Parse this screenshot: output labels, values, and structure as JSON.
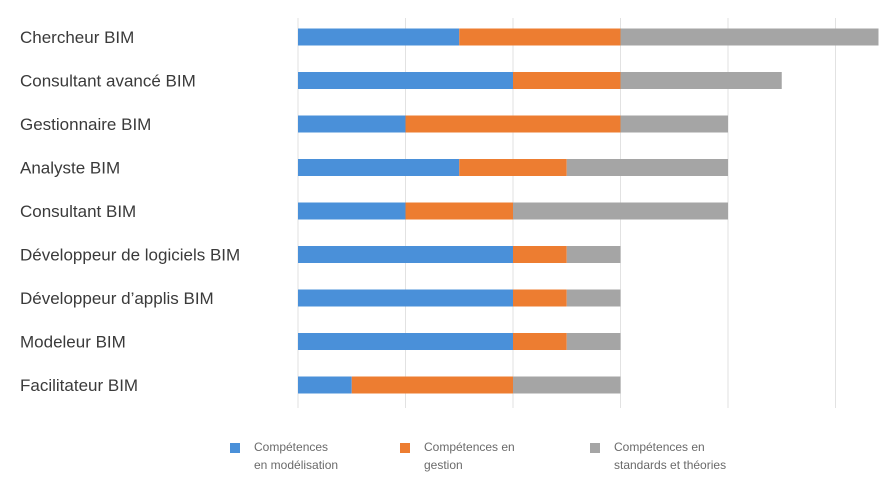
{
  "chart_data": {
    "type": "bar",
    "orientation": "horizontal",
    "stacked": true,
    "categories": [
      "Chercheur BIM",
      "Consultant avancé BIM",
      "Gestionnaire BIM",
      "Analyste BIM",
      "Consultant BIM",
      "Développeur de logiciels BIM",
      "Développeur d’applis BIM",
      "Modeleur BIM",
      "Facilitateur BIM"
    ],
    "series": [
      {
        "name": "Compétences\nen modélisation",
        "color": "#4a90d9",
        "values": [
          1.5,
          2,
          1,
          1.5,
          1,
          2,
          2,
          2,
          0.5
        ]
      },
      {
        "name": "Compétences en\ngestion",
        "color": "#ed7d31",
        "values": [
          1.5,
          1,
          2,
          1,
          1,
          0.5,
          0.5,
          0.5,
          1.5
        ]
      },
      {
        "name": "Compétences en\nstandards et théories",
        "color": "#a5a5a5",
        "values": [
          2.4,
          1.5,
          1,
          1.5,
          2,
          0.5,
          0.5,
          0.5,
          1
        ]
      }
    ],
    "xlim": [
      0,
      5.5
    ],
    "grid": "vertical",
    "legend_position": "bottom"
  }
}
